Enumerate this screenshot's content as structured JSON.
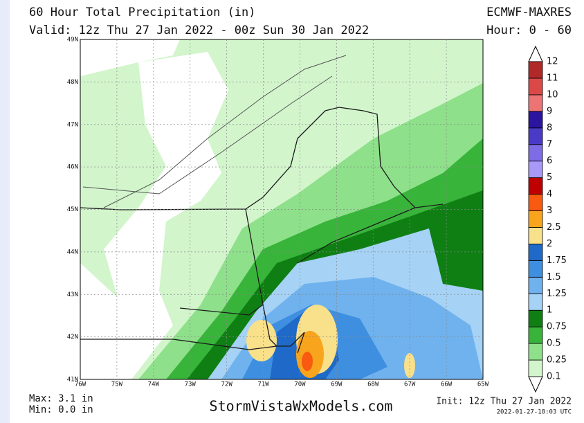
{
  "header": {
    "title": "60 Hour Total Precipitation (in)",
    "valid": "Valid: 12z Thu 27 Jan 2022 - 00z Sun 30 Jan 2022",
    "model": "ECMWF-MAXRES",
    "hour": "Hour: 0 - 60"
  },
  "map": {
    "lat_labels": [
      "41N",
      "42N",
      "43N",
      "44N",
      "45N",
      "46N",
      "47N",
      "48N",
      "49N"
    ],
    "lon_labels": [
      "76W",
      "75W",
      "74W",
      "73W",
      "72W",
      "71W",
      "70W",
      "69W",
      "68W",
      "67W",
      "66W",
      "65W"
    ]
  },
  "legend": {
    "labels": [
      "0.1",
      "0.25",
      "0.5",
      "0.75",
      "1",
      "1.25",
      "1.5",
      "1.75",
      "2",
      "2.5",
      "3",
      "4",
      "5",
      "6",
      "7",
      "8",
      "9",
      "10",
      "11",
      "12"
    ],
    "colors": [
      "#d2f5cc",
      "#8ee08a",
      "#38b43a",
      "#0f7f14",
      "#a6d2f5",
      "#6fb2ee",
      "#3f8fe0",
      "#1f6ac8",
      "#f9e08a",
      "#f8a41c",
      "#f85a10",
      "#c00000",
      "#a898f8",
      "#7c6ce6",
      "#4a3ac8",
      "#2a14a0",
      "#ec7474",
      "#dc4848",
      "#b02828"
    ]
  },
  "footer": {
    "max": "Max: 3.1 in",
    "min": "Min: 0.0 in",
    "site": "StormVistaWxModels.com",
    "init": "Init: 12z Thu 27 Jan 2022",
    "stamp": "2022-01-27-18:03 UTC"
  }
}
